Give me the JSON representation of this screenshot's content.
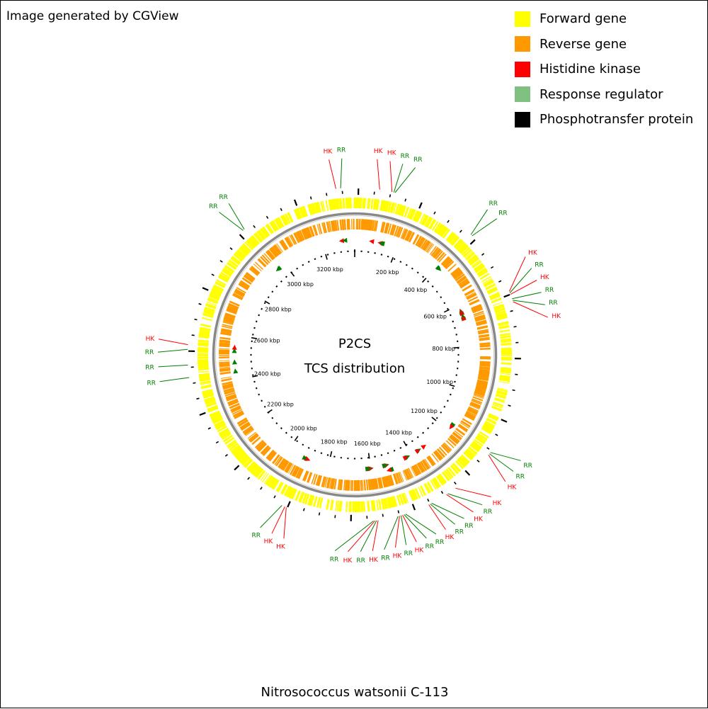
{
  "credit": "Image generated by CGView",
  "organism": "Nitrosococcus watsonii C-113",
  "center": {
    "line1": "P2CS",
    "line2": "TCS distribution"
  },
  "legend": [
    {
      "label": "Forward gene",
      "color": "#ffff00"
    },
    {
      "label": "Reverse gene",
      "color": "#ff9900"
    },
    {
      "label": "Histidine kinase",
      "color": "#ff0000"
    },
    {
      "label": "Response regulator",
      "color": "#80c080"
    },
    {
      "label": "Phosphotransfer protein",
      "color": "#000000"
    }
  ],
  "colors": {
    "forward": "#ffff00",
    "reverse": "#ff9900",
    "backbone": "#888888",
    "hk": "#ff0000",
    "rr": "#008000",
    "tick": "#000000"
  },
  "genome": {
    "length_kbp": 3350,
    "tick_labels": [
      {
        "kbp": 200,
        "text": "200 kbp"
      },
      {
        "kbp": 400,
        "text": "400 kbp"
      },
      {
        "kbp": 600,
        "text": "600 kbp"
      },
      {
        "kbp": 800,
        "text": "800 kbp"
      },
      {
        "kbp": 1000,
        "text": "1000 kbp"
      },
      {
        "kbp": 1200,
        "text": "1200 kbp"
      },
      {
        "kbp": 1400,
        "text": "1400 kbp"
      },
      {
        "kbp": 1600,
        "text": "1600 kbp"
      },
      {
        "kbp": 1800,
        "text": "1800 kbp"
      },
      {
        "kbp": 2000,
        "text": "2000 kbp"
      },
      {
        "kbp": 2200,
        "text": "2200 kbp"
      },
      {
        "kbp": 2400,
        "text": "2400 kbp"
      },
      {
        "kbp": 2600,
        "text": "2600 kbp"
      },
      {
        "kbp": 2800,
        "text": "2800 kbp"
      },
      {
        "kbp": 3000,
        "text": "3000 kbp"
      },
      {
        "kbp": 3200,
        "text": "3200 kbp"
      }
    ]
  },
  "tcs_features": [
    {
      "kbp": 3290,
      "type": "HK",
      "label": "HK",
      "strand": "reverse"
    },
    {
      "kbp": 3305,
      "type": "RR",
      "label": "RR",
      "strand": "reverse"
    },
    {
      "kbp": 80,
      "type": "HK",
      "label": "HK",
      "strand": "reverse"
    },
    {
      "kbp": 120,
      "type": "HK",
      "label": "HK",
      "strand": "reverse"
    },
    {
      "kbp": 126,
      "type": "RR",
      "label": "RR",
      "strand": "reverse"
    },
    {
      "kbp": 130,
      "type": "RR",
      "label": "RR",
      "strand": "reverse"
    },
    {
      "kbp": 410,
      "type": "RR",
      "label": "RR",
      "strand": "forward"
    },
    {
      "kbp": 415,
      "type": "RR",
      "label": "RR",
      "strand": "forward"
    },
    {
      "kbp": 630,
      "type": "HK",
      "label": "HK",
      "strand": "reverse"
    },
    {
      "kbp": 635,
      "type": "RR",
      "label": "RR",
      "strand": "reverse"
    },
    {
      "kbp": 640,
      "type": "HK",
      "label": "HK",
      "strand": "reverse"
    },
    {
      "kbp": 655,
      "type": "RR",
      "label": "RR",
      "strand": "reverse"
    },
    {
      "kbp": 660,
      "type": "RR",
      "label": "RR",
      "strand": "reverse"
    },
    {
      "kbp": 665,
      "type": "HK",
      "label": "HK",
      "strand": "reverse"
    },
    {
      "kbp": 1170,
      "type": "RR",
      "label": "RR",
      "strand": "forward"
    },
    {
      "kbp": 1175,
      "type": "RR",
      "label": "RR",
      "strand": "forward"
    },
    {
      "kbp": 1180,
      "type": "HK",
      "label": "HK",
      "strand": "forward"
    },
    {
      "kbp": 1330,
      "type": "HK",
      "label": "HK",
      "strand": "reverse"
    },
    {
      "kbp": 1360,
      "type": "RR",
      "label": "RR",
      "strand": "reverse"
    },
    {
      "kbp": 1365,
      "type": "HK",
      "label": "HK",
      "strand": "reverse"
    },
    {
      "kbp": 1420,
      "type": "RR",
      "label": "RR",
      "strand": "reverse"
    },
    {
      "kbp": 1425,
      "type": "RR",
      "label": "RR",
      "strand": "reverse"
    },
    {
      "kbp": 1430,
      "type": "HK",
      "label": "HK",
      "strand": "reverse"
    },
    {
      "kbp": 1510,
      "type": "RR",
      "label": "RR",
      "strand": "forward"
    },
    {
      "kbp": 1515,
      "type": "RR",
      "label": "RR",
      "strand": "forward"
    },
    {
      "kbp": 1520,
      "type": "HK",
      "label": "HK",
      "strand": "forward"
    },
    {
      "kbp": 1525,
      "type": "RR",
      "label": "RR",
      "strand": "reverse"
    },
    {
      "kbp": 1530,
      "type": "HK",
      "label": "HK",
      "strand": "reverse"
    },
    {
      "kbp": 1535,
      "type": "RR",
      "label": "RR",
      "strand": "reverse"
    },
    {
      "kbp": 1600,
      "type": "HK",
      "label": "HK",
      "strand": "reverse"
    },
    {
      "kbp": 1605,
      "type": "RR",
      "label": "RR",
      "strand": "reverse"
    },
    {
      "kbp": 1610,
      "type": "HK",
      "label": "HK",
      "strand": "reverse"
    },
    {
      "kbp": 1615,
      "type": "RR",
      "label": "RR",
      "strand": "reverse"
    },
    {
      "kbp": 1900,
      "type": "HK",
      "label": "HK",
      "strand": "reverse"
    },
    {
      "kbp": 1905,
      "type": "HK",
      "label": "HK",
      "strand": "reverse"
    },
    {
      "kbp": 1915,
      "type": "RR",
      "label": "RR",
      "strand": "reverse"
    },
    {
      "kbp": 2440,
      "type": "RR",
      "label": "RR",
      "strand": "forward"
    },
    {
      "kbp": 2480,
      "type": "RR",
      "label": "RR",
      "strand": "forward"
    },
    {
      "kbp": 2530,
      "type": "RR",
      "label": "RR",
      "strand": "forward"
    },
    {
      "kbp": 2545,
      "type": "HK",
      "label": "HK",
      "strand": "forward"
    },
    {
      "kbp": 2960,
      "type": "RR",
      "label": "RR",
      "strand": "reverse"
    },
    {
      "kbp": 2965,
      "type": "RR",
      "label": "RR",
      "strand": "reverse"
    }
  ]
}
